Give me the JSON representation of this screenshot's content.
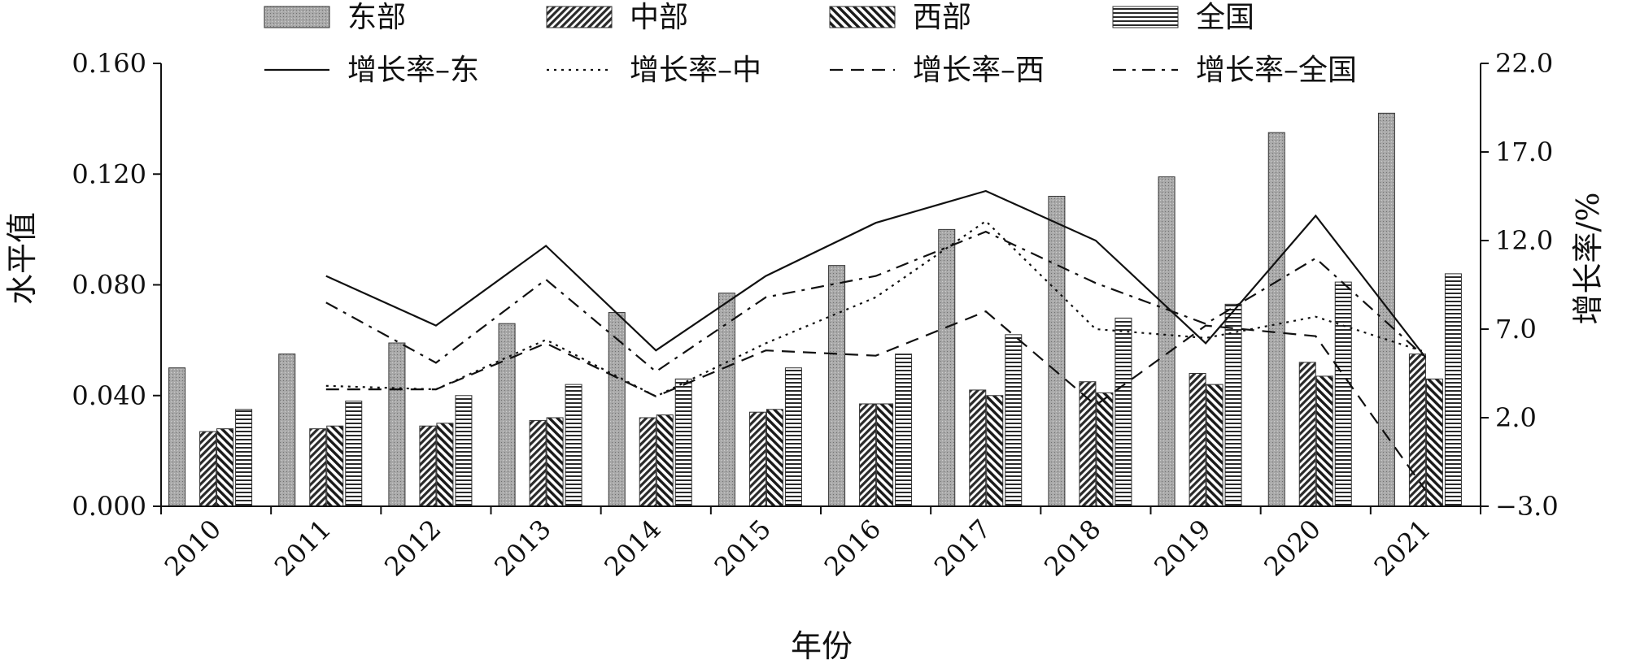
{
  "chart_data": {
    "type": "bar",
    "categories": [
      "2010",
      "2011",
      "2012",
      "2013",
      "2014",
      "2015",
      "2016",
      "2017",
      "2018",
      "2019",
      "2020",
      "2021"
    ],
    "series": [
      {
        "name": "东部",
        "axis": "left",
        "values": [
          0.05,
          0.055,
          0.059,
          0.066,
          0.07,
          0.077,
          0.087,
          0.1,
          0.112,
          0.119,
          0.135,
          0.142
        ]
      },
      {
        "name": "中部",
        "axis": "left",
        "values": [
          0.027,
          0.028,
          0.029,
          0.031,
          0.032,
          0.034,
          0.037,
          0.042,
          0.045,
          0.048,
          0.052,
          0.055
        ]
      },
      {
        "name": "西部",
        "axis": "left",
        "values": [
          0.028,
          0.029,
          0.03,
          0.032,
          0.033,
          0.035,
          0.037,
          0.04,
          0.041,
          0.044,
          0.047,
          0.046
        ]
      },
      {
        "name": "全国",
        "axis": "left",
        "values": [
          0.035,
          0.038,
          0.04,
          0.044,
          0.046,
          0.05,
          0.055,
          0.062,
          0.068,
          0.073,
          0.081,
          0.084
        ]
      }
    ],
    "line_series": [
      {
        "name": "增长率–东",
        "axis": "right",
        "style": "solid",
        "values": [
          null,
          10.0,
          7.2,
          11.7,
          5.8,
          10.0,
          13.0,
          14.8,
          12.0,
          6.2,
          13.4,
          5.4
        ]
      },
      {
        "name": "增长率–中",
        "axis": "right",
        "style": "dotted",
        "values": [
          null,
          3.8,
          3.6,
          6.4,
          3.2,
          6.2,
          8.8,
          13.1,
          7.0,
          6.5,
          7.7,
          5.7
        ]
      },
      {
        "name": "增长率–西",
        "axis": "right",
        "style": "dashed",
        "values": [
          null,
          3.6,
          3.6,
          6.2,
          3.2,
          5.8,
          5.5,
          8.0,
          2.7,
          7.2,
          6.6,
          -2.1
        ]
      },
      {
        "name": "增长率–全国",
        "axis": "right",
        "style": "dashdot",
        "values": [
          null,
          8.5,
          5.1,
          9.8,
          4.6,
          8.8,
          10.0,
          12.5,
          9.6,
          7.3,
          11.0,
          5.4
        ]
      }
    ],
    "left_axis": {
      "label": "水平值",
      "min": 0,
      "max": 0.16,
      "ticks": [
        "0.000",
        "0.040",
        "0.080",
        "0.120",
        "0.160"
      ]
    },
    "right_axis": {
      "label": "增长率/%",
      "min": -3,
      "max": 22,
      "ticks": [
        "−3.0",
        "2.0",
        "7.0",
        "12.0",
        "17.0",
        "22.0"
      ]
    },
    "xlabel": "年份",
    "grid": false,
    "legend_position": "top"
  },
  "colors": {
    "bar_east": "#a8a8a8",
    "stroke": "#222222"
  }
}
